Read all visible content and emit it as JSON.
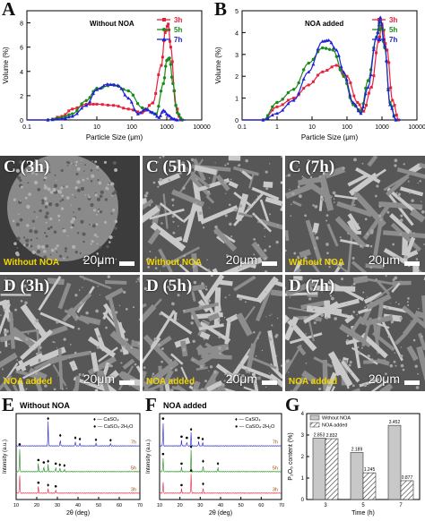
{
  "panels": {
    "a": {
      "label": "A",
      "title": "Without NOA"
    },
    "b": {
      "label": "B",
      "title": "NOA added"
    },
    "xlabel": "Particle Size (μm)",
    "ylabel": "Volume (%)",
    "legend": [
      "3h",
      "5h",
      "7h"
    ],
    "legend_colors": [
      "#e8203a",
      "#1a8a1a",
      "#2020d8"
    ],
    "sem": [
      {
        "tag": "C (3h)",
        "cond": "Without NOA",
        "scale": "20μm"
      },
      {
        "tag": "C (5h)",
        "cond": "Without NOA",
        "scale": "20μm"
      },
      {
        "tag": "C (7h)",
        "cond": "Without NOA",
        "scale": "20μm"
      },
      {
        "tag": "D (3h)",
        "cond": "NOA added",
        "scale": "20μm"
      },
      {
        "tag": "D (5h)",
        "cond": "NOA added",
        "scale": "20μm"
      },
      {
        "tag": "D (7h)",
        "cond": "NOA added",
        "scale": "20μm"
      }
    ],
    "e": {
      "label": "E",
      "title": "Without NOA",
      "legend": [
        "♦ — CaSO₄",
        "● — CaSO₄·2H₂O"
      ],
      "traces": [
        "7h",
        "5h",
        "3h"
      ]
    },
    "f": {
      "label": "F",
      "title": "NOA added",
      "legend": [
        "♦ — CaSO₄",
        "● — CaSO₄·2H₂O"
      ],
      "traces": [
        "7h",
        "5h",
        "3h"
      ]
    },
    "xrd_xlabel": "2θ (deg)",
    "xrd_ylabel": "Intensity (a.u.)",
    "g": {
      "label": "G",
      "ylabel": "P₂O₅ content (%)",
      "xlabel": "Time (h)",
      "legend": [
        "Without NOA",
        "NOA added"
      ]
    }
  },
  "chart_data": [
    {
      "type": "line",
      "title": "Without NOA",
      "xlabel": "Particle Size (μm)",
      "ylabel": "Volume (%)",
      "xscale": "log",
      "xlim": [
        0.1,
        10000
      ],
      "ylim": [
        0,
        9
      ],
      "xticks": [
        "0.1",
        "1",
        "10",
        "100",
        "1000",
        "10000"
      ],
      "yticks": [
        "0",
        "2",
        "4",
        "6",
        "8"
      ],
      "legend_position": "top-right",
      "series": [
        {
          "name": "3h",
          "color": "#e8203a",
          "x": [
            0.4,
            1,
            2,
            5,
            10,
            30,
            80,
            200,
            400,
            700,
            900,
            1100,
            1300,
            1800,
            2500
          ],
          "y": [
            0,
            0.3,
            0.9,
            1.3,
            1.3,
            1.2,
            0.9,
            0.6,
            1.4,
            4.5,
            7.2,
            7.9,
            6.0,
            1.2,
            0
          ]
        },
        {
          "name": "5h",
          "color": "#1a8a1a",
          "x": [
            0.4,
            1,
            2,
            5,
            10,
            30,
            80,
            200,
            500,
            800,
            1000,
            1200,
            1500,
            2000,
            2800
          ],
          "y": [
            0,
            0.2,
            0.5,
            1.6,
            2.6,
            2.9,
            2.4,
            1.0,
            0.5,
            3.0,
            4.9,
            5.1,
            3.0,
            0.6,
            0
          ]
        },
        {
          "name": "7h",
          "color": "#2020d8",
          "x": [
            0.4,
            1,
            2,
            5,
            10,
            20,
            40,
            80,
            150,
            250,
            400,
            600,
            800,
            1100,
            1500,
            2000
          ],
          "y": [
            0,
            0.1,
            0.3,
            1.2,
            2.5,
            2.95,
            2.85,
            1.8,
            0.5,
            0.9,
            0.6,
            0.2,
            0.8,
            0.4,
            0.1,
            0
          ]
        }
      ]
    },
    {
      "type": "line",
      "title": "NOA added",
      "xlabel": "Particle Size (μm)",
      "ylabel": "Volume (%)",
      "xscale": "log",
      "xlim": [
        0.1,
        10000
      ],
      "ylim": [
        0,
        5
      ],
      "xticks": [
        "0.1",
        "1",
        "10",
        "100",
        "1000",
        "10000"
      ],
      "yticks": [
        "0",
        "1",
        "2",
        "3",
        "4",
        "5"
      ],
      "legend_position": "top-right",
      "series": [
        {
          "name": "3h",
          "color": "#e8203a",
          "x": [
            0.4,
            1,
            3,
            8,
            20,
            50,
            100,
            200,
            300,
            500,
            800,
            1000,
            1400,
            2000,
            3000
          ],
          "y": [
            0,
            0.6,
            1.0,
            1.6,
            2.2,
            2.5,
            2.0,
            0.8,
            0.4,
            1.5,
            3.6,
            4.4,
            3.2,
            0.9,
            0
          ]
        },
        {
          "name": "5h",
          "color": "#1a8a1a",
          "x": [
            0.4,
            1,
            3,
            8,
            20,
            40,
            80,
            150,
            250,
            400,
            700,
            900,
            1200,
            1700,
            2500
          ],
          "y": [
            0,
            0.8,
            1.4,
            2.6,
            3.3,
            3.2,
            2.0,
            0.7,
            0.4,
            1.8,
            3.8,
            4.5,
            3.3,
            0.8,
            0
          ]
        },
        {
          "name": "7h",
          "color": "#2020d8",
          "x": [
            0.4,
            1,
            3,
            8,
            20,
            30,
            50,
            80,
            150,
            250,
            400,
            700,
            900,
            1200,
            1700,
            2500
          ],
          "y": [
            0,
            0.3,
            0.9,
            2.2,
            3.6,
            3.65,
            3.2,
            2.2,
            0.8,
            0.3,
            1.5,
            3.8,
            4.7,
            3.4,
            0.7,
            0
          ]
        }
      ]
    },
    {
      "type": "line",
      "title": "Without NOA",
      "xlabel": "2θ (deg)",
      "ylabel": "Intensity (a.u.)",
      "xlim": [
        10,
        70
      ],
      "xticks": [
        "10",
        "20",
        "30",
        "40",
        "50",
        "60",
        "70"
      ],
      "series": [
        {
          "name": "7h",
          "color": "#2020d8",
          "peaks": [
            [
              25.5,
              1.0
            ],
            [
              31.4,
              0.3
            ],
            [
              38.7,
              0.2
            ],
            [
              40.9,
              0.15
            ],
            [
              48.7,
              0.12
            ],
            [
              55.8,
              0.1
            ]
          ]
        },
        {
          "name": "5h",
          "color": "#1a8a1a",
          "peaks": [
            [
              11.7,
              1.0
            ],
            [
              20.8,
              0.35
            ],
            [
              23.4,
              0.25
            ],
            [
              25.5,
              0.3
            ],
            [
              29.2,
              0.2
            ],
            [
              31.2,
              0.15
            ],
            [
              33.4,
              0.12
            ]
          ]
        },
        {
          "name": "3h",
          "color": "#e8203a",
          "peaks": [
            [
              11.7,
              0.8
            ],
            [
              20.8,
              0.3
            ],
            [
              25.5,
              0.2
            ],
            [
              29.2,
              0.15
            ]
          ]
        }
      ]
    },
    {
      "type": "line",
      "title": "NOA added",
      "xlabel": "2θ (deg)",
      "ylabel": "Intensity (a.u.)",
      "xlim": [
        10,
        70
      ],
      "xticks": [
        "10",
        "20",
        "30",
        "40",
        "50",
        "60",
        "70"
      ],
      "series": [
        {
          "name": "7h",
          "color": "#2020d8",
          "peaks": [
            [
              11.7,
              1.0
            ],
            [
              20.8,
              0.25
            ],
            [
              23.4,
              0.2
            ],
            [
              25.5,
              0.55
            ],
            [
              29.2,
              0.2
            ],
            [
              31.2,
              0.15
            ]
          ]
        },
        {
          "name": "5h",
          "color": "#1a8a1a",
          "peaks": [
            [
              11.7,
              0.6
            ],
            [
              20.8,
              0.2
            ],
            [
              25.5,
              0.9
            ],
            [
              31.4,
              0.3
            ],
            [
              38.7,
              0.2
            ]
          ]
        },
        {
          "name": "3h",
          "color": "#e8203a",
          "peaks": [
            [
              11.7,
              0.5
            ],
            [
              20.8,
              0.2
            ],
            [
              25.5,
              0.8
            ],
            [
              31.4,
              0.25
            ]
          ]
        }
      ]
    },
    {
      "type": "bar",
      "categories": [
        "3",
        "5",
        "7"
      ],
      "xlabel": "Time (h)",
      "ylabel": "P₂O₅ content (%)",
      "ylim": [
        0,
        4
      ],
      "yticks": [
        "0",
        "1",
        "2",
        "3",
        "4"
      ],
      "legend_position": "top-left",
      "series": [
        {
          "name": "Without NOA",
          "values": [
            2.853,
            2.189,
            3.452
          ],
          "labels": [
            "2.853",
            "2.189",
            "3.452"
          ],
          "color": "#c8c8c8"
        },
        {
          "name": "NOA added",
          "values": [
            2.832,
            1.245,
            0.877
          ],
          "labels": [
            "2.832",
            "1.245",
            "0.877"
          ],
          "color": "hatched"
        }
      ]
    }
  ]
}
